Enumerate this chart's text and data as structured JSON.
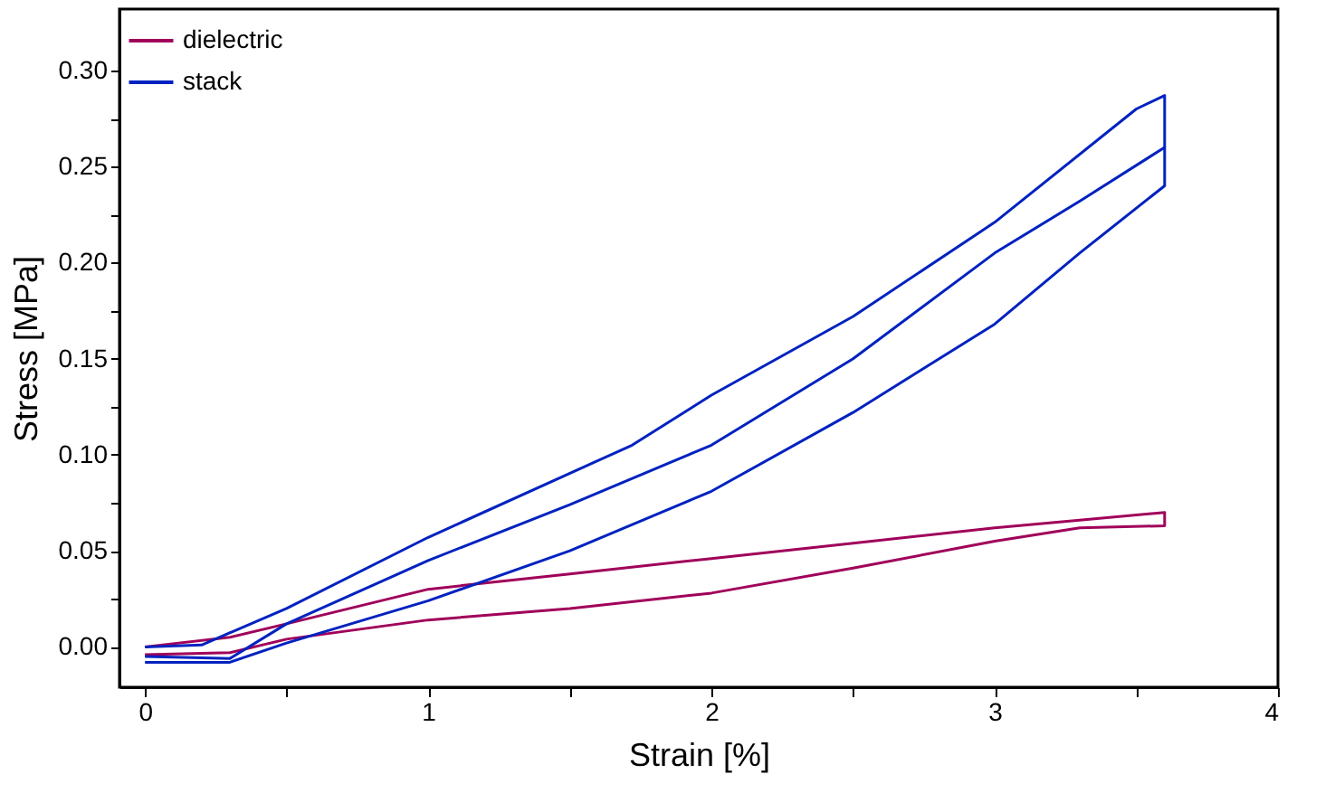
{
  "chart_data": {
    "type": "line",
    "xlabel": "Strain [%]",
    "ylabel": "Stress [MPa]",
    "xlim": [
      -0.09,
      4.0
    ],
    "ylim": [
      -0.021,
      0.332
    ],
    "xticks": [
      0,
      {
        "value": 0.5,
        "label": null
      },
      1,
      {
        "value": 1.5,
        "label": null
      },
      2,
      {
        "value": 2.5,
        "label": null
      },
      3,
      {
        "value": 3.5,
        "label": null
      },
      4
    ],
    "yticks": [
      {
        "value": 0,
        "label": "0.00"
      },
      {
        "value": 0.025,
        "label": null
      },
      0.05,
      {
        "value": 0.075,
        "label": null
      },
      {
        "value": 0.1,
        "label": "0.10"
      },
      {
        "value": 0.125,
        "label": null
      },
      0.15,
      {
        "value": 0.175,
        "label": null
      },
      {
        "value": 0.2,
        "label": "0.20"
      },
      {
        "value": 0.225,
        "label": null
      },
      0.25,
      {
        "value": 0.275,
        "label": null
      },
      {
        "value": 0.3,
        "label": "0.30"
      }
    ],
    "grid": false,
    "legend": "top left",
    "marker": "none",
    "line_style": "solid",
    "series": [
      {
        "name": "dielectric",
        "color": "#a0005a",
        "x": [
          0,
          0.3,
          0.5,
          1.0,
          1.5,
          2.0,
          2.5,
          3.0,
          3.3,
          3.6,
          3.6,
          3.3,
          3.0,
          2.5,
          2.0,
          1.5,
          1.0,
          0.5,
          0.3,
          0
        ],
        "values": [
          0.0,
          0.005,
          0.012,
          0.03,
          0.038,
          0.046,
          0.054,
          0.062,
          0.066,
          0.07,
          0.063,
          0.062,
          0.055,
          0.041,
          0.028,
          0.02,
          0.014,
          0.004,
          -0.003,
          -0.004
        ]
      },
      {
        "name": "stack",
        "color": "#0022c0",
        "x": [
          0,
          0.3,
          0.5,
          1.0,
          1.5,
          2.0,
          2.5,
          3.0,
          3.3,
          3.6,
          3.6,
          3.3,
          3.0,
          2.5,
          2.0,
          1.5,
          1.0,
          0.5,
          0.3,
          0
        ],
        "values": [
          -0.005,
          -0.006,
          0.012,
          0.045,
          0.074,
          0.105,
          0.15,
          0.205,
          0.232,
          0.26,
          0.24,
          0.205,
          0.168,
          0.122,
          0.081,
          0.05,
          0.024,
          0.002,
          -0.008,
          -0.008
        ]
      },
      {
        "color": "#0022c0",
        "x": [
          0,
          0.2,
          0.5,
          1.0,
          1.72,
          2.0,
          2.5,
          3.0,
          3.5,
          3.6,
          3.6
        ],
        "values": [
          0.0,
          0.001,
          0.02,
          0.057,
          0.105,
          0.131,
          0.172,
          0.221,
          0.28,
          0.287,
          0.26
        ]
      }
    ]
  }
}
